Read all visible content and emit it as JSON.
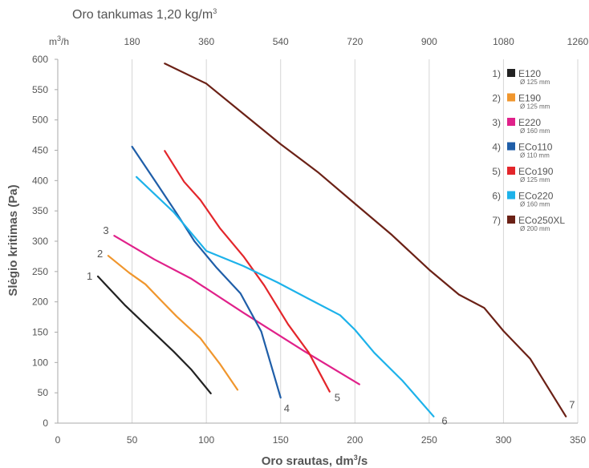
{
  "chart_data": {
    "type": "line",
    "top_title": "Oro tankumas 1,20 kg/m",
    "top_title_sup": "3",
    "xlabel": "Oro srautas, dm",
    "xlabel_sup": "3",
    "xlabel_tail": "/s",
    "ylabel": "Slėgio kritimas (Pa)",
    "xlim": [
      0,
      350
    ],
    "ylim": [
      0,
      600
    ],
    "x_ticks": [
      0,
      50,
      100,
      150,
      200,
      250,
      300,
      350
    ],
    "y_ticks": [
      0,
      50,
      100,
      150,
      200,
      250,
      300,
      350,
      400,
      450,
      500,
      550,
      600
    ],
    "top_axis_unit": "m",
    "top_axis_unit_sup": "3",
    "top_axis_unit_tail": "/h",
    "top_ticks": [
      {
        "value": 180,
        "x_ls": 50
      },
      {
        "value": 360,
        "x_ls": 100
      },
      {
        "value": 540,
        "x_ls": 150
      },
      {
        "value": 720,
        "x_ls": 200
      },
      {
        "value": 900,
        "x_ls": 250
      },
      {
        "value": 1080,
        "x_ls": 300
      },
      {
        "value": 1260,
        "x_ls": 350
      }
    ],
    "grid": "vertical",
    "legend_position": "top-right",
    "series": [
      {
        "name": "E120",
        "sub": "Ø 125 mm",
        "num": "1)",
        "label": "1",
        "color": "#222222",
        "x": [
          27,
          45,
          60,
          78,
          90,
          103
        ],
        "y": [
          242,
          195,
          160,
          118,
          88,
          49
        ]
      },
      {
        "name": "E190",
        "sub": "Ø 125 mm",
        "num": "2)",
        "label": "2",
        "color": "#f0962d",
        "x": [
          34,
          48,
          59,
          70,
          80,
          96,
          109,
          121
        ],
        "y": [
          276,
          248,
          229,
          201,
          176,
          140,
          98,
          55
        ]
      },
      {
        "name": "E220",
        "sub": "Ø 160 mm",
        "num": "3)",
        "label": "3",
        "color": "#e0218a",
        "x": [
          38,
          65,
          90,
          125,
          165,
          203
        ],
        "y": [
          309,
          270,
          238,
          182,
          120,
          64
        ]
      },
      {
        "name": "ECo110",
        "sub": "Ø 110 mm",
        "num": "4)",
        "label": "4",
        "color": "#1f5ea8",
        "x": [
          50,
          67,
          80,
          92,
          107,
          123,
          137,
          150
        ],
        "y": [
          456,
          394,
          346,
          300,
          256,
          214,
          151,
          42
        ]
      },
      {
        "name": "ECo190",
        "sub": "Ø 125 mm",
        "num": "5)",
        "label": "5",
        "color": "#e3262b",
        "x": [
          72,
          85,
          96,
          109,
          125,
          139,
          155,
          169,
          183
        ],
        "y": [
          449,
          398,
          368,
          322,
          275,
          227,
          163,
          116,
          52
        ]
      },
      {
        "name": "ECo220",
        "sub": "Ø 160 mm",
        "num": "6)",
        "label": "6",
        "color": "#1db2ea",
        "x": [
          53,
          78,
          100,
          125,
          148,
          172,
          190,
          200,
          213,
          232,
          253
        ],
        "y": [
          406,
          348,
          284,
          259,
          232,
          201,
          178,
          154,
          116,
          70,
          11
        ]
      },
      {
        "name": "ECo250XL",
        "sub": "Ø 200 mm",
        "num": "7)",
        "label": "7",
        "color": "#6b2116",
        "x": [
          72,
          100,
          125,
          150,
          175,
          200,
          225,
          250,
          270,
          287,
          300,
          318,
          342
        ],
        "y": [
          593,
          560,
          510,
          460,
          414,
          362,
          310,
          253,
          212,
          190,
          152,
          106,
          11
        ]
      }
    ]
  }
}
